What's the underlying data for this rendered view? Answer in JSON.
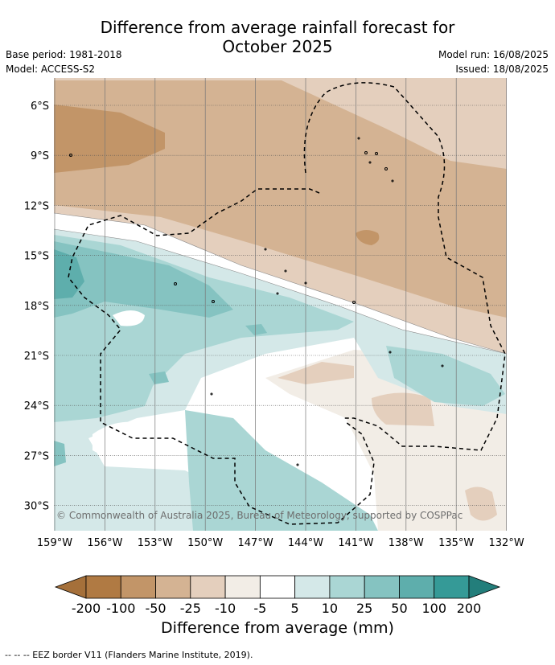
{
  "title_line1": "Difference from average rainfall forecast for",
  "title_line2": "October 2025",
  "base_period": "Base period: 1981-2018",
  "model": "Model: ACCESS-S2",
  "model_run": "Model run: 16/08/2025",
  "issued": "Issued: 18/08/2025",
  "copyright": "© Commonwealth of Australia 2025, Bureau of Meteorology, supported by COSPPac",
  "lat_labels": [
    "6°S",
    "9°S",
    "12°S",
    "15°S",
    "18°S",
    "21°S",
    "24°S",
    "27°S",
    "30°S"
  ],
  "lon_labels": [
    "159°W",
    "156°W",
    "153°W",
    "150°W",
    "147°W",
    "144°W",
    "141°W",
    "138°W",
    "135°W",
    "132°W"
  ],
  "colorbar": {
    "title": "Difference from average (mm)",
    "ticks": [
      "-200",
      "-100",
      "-50",
      "-25",
      "-10",
      "-5",
      "5",
      "10",
      "25",
      "50",
      "100",
      "200"
    ],
    "colors": [
      "#a5703a",
      "#b07a43",
      "#c29568",
      "#d4b393",
      "#e4cfbd",
      "#f2ede6",
      "#ffffff",
      "#d4e8e8",
      "#aad6d4",
      "#85c3c1",
      "#5eaeac",
      "#359a97",
      "#237e7b"
    ]
  },
  "footnote": "-- -- -- EEZ border V11 (Flanders Marine Institute, 2019)."
}
